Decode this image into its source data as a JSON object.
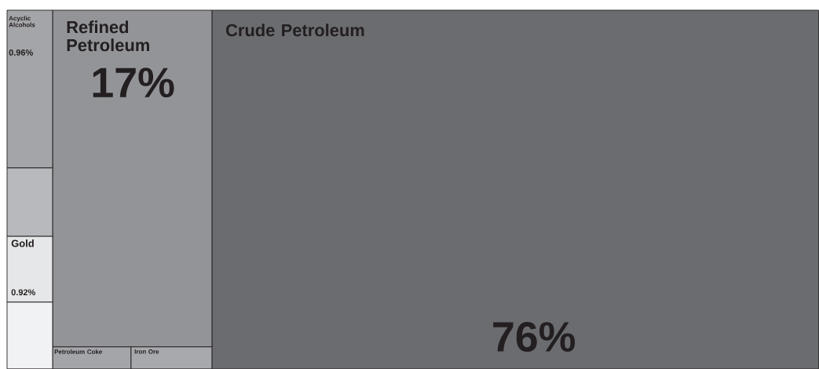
{
  "chart_data": {
    "type": "other",
    "categories": [
      "Crude Petroleum",
      "Refined Petroleum",
      "Acyclic Alcohols",
      "Gold",
      "Petroleum Coke",
      "Iron Ore",
      null,
      null
    ],
    "values": [
      76,
      17,
      0.96,
      0.92,
      null,
      null,
      null,
      null
    ],
    "value_labels": [
      "76%",
      "17%",
      "0.96%",
      "0.92%",
      null,
      null,
      null,
      null
    ],
    "colors": [
      "#6b6c70",
      "#939498",
      "#a4a5a9",
      "#e6e7e8",
      "#a4a5a9",
      "#a8a9ad",
      "#b8b9bd",
      "#f1f2f3"
    ]
  }
}
